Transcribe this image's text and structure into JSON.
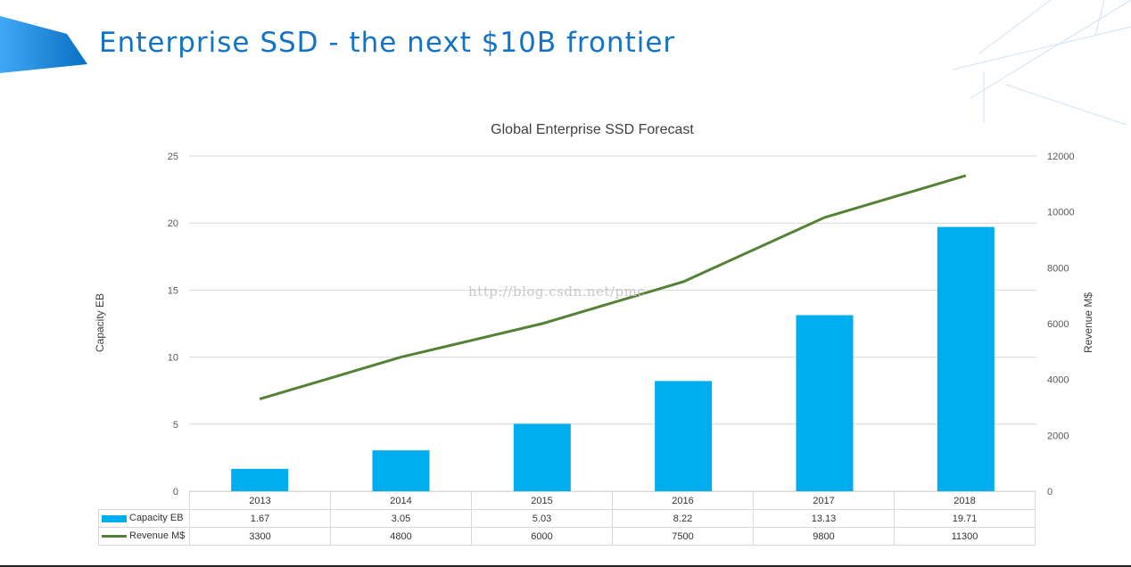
{
  "slide": {
    "title": "Enterprise SSD - the next $10B frontier",
    "watermark": "http://blog.csdn.net/pmc"
  },
  "chart_data": {
    "type": "bar",
    "title": "Global Enterprise SSD Forecast",
    "categories": [
      "2013",
      "2014",
      "2015",
      "2016",
      "2017",
      "2018"
    ],
    "series": [
      {
        "name": "Capacity EB",
        "type": "bar",
        "axis": "left",
        "color": "#00aeef",
        "values": [
          1.67,
          3.05,
          5.03,
          8.22,
          13.13,
          19.71
        ]
      },
      {
        "name": "Revenue M$",
        "type": "line",
        "axis": "right",
        "color": "#548235",
        "values": [
          3300,
          4800,
          6000,
          7500,
          9800,
          11300
        ]
      }
    ],
    "y_left": {
      "label": "Capacity EB",
      "min": 0,
      "max": 25,
      "ticks": [
        "0",
        "5",
        "10",
        "15",
        "20",
        "25"
      ]
    },
    "y_right": {
      "label": "Revenue M$",
      "min": 0,
      "max": 12000,
      "ticks": [
        "0",
        "2000",
        "4000",
        "6000",
        "8000",
        "10000",
        "12000"
      ]
    },
    "grid": true,
    "data_table": {
      "rows": [
        {
          "label": "Capacity EB",
          "values": [
            "1.67",
            "3.05",
            "5.03",
            "8.22",
            "13.13",
            "19.71"
          ]
        },
        {
          "label": "Revenue M$",
          "values": [
            "3300",
            "4800",
            "6000",
            "7500",
            "9800",
            "11300"
          ]
        }
      ]
    }
  }
}
